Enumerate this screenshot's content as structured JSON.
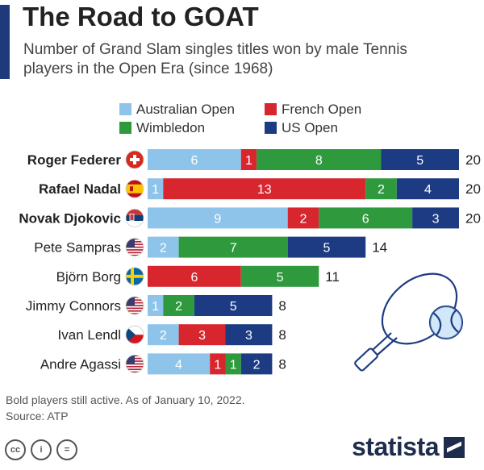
{
  "title": "The Road to GOAT",
  "subtitle": "Number of Grand Slam singles titles won by male Tennis players in the Open Era (since 1968)",
  "footnote_line1": "Bold players still active. As of January 10, 2022.",
  "footnote_line2": "Source: ATP",
  "brand": "statista",
  "colors": {
    "australian_open": "#8fc4ea",
    "french_open": "#d8262f",
    "wimbledon": "#2e9a3d",
    "us_open": "#1d3b82",
    "accent": "#1f3a7a"
  },
  "chart_data": {
    "type": "bar",
    "orientation": "horizontal",
    "stacked": true,
    "legend_position": "top",
    "grid": false,
    "categories": [
      "Roger Federer",
      "Rafael Nadal",
      "Novak Djokovic",
      "Pete Sampras",
      "Björn Borg",
      "Jimmy Connors",
      "Ivan Lendl",
      "Andre Agassi"
    ],
    "bold": [
      true,
      true,
      true,
      false,
      false,
      false,
      false,
      false
    ],
    "flags": [
      "switzerland-flag-icon",
      "spain-flag-icon",
      "serbia-flag-icon",
      "usa-flag-icon",
      "sweden-flag-icon",
      "usa-flag-icon",
      "czech-flag-icon",
      "usa-flag-icon"
    ],
    "series": [
      {
        "name": "Australian Open",
        "color": "#8fc4ea",
        "values": [
          6,
          1,
          9,
          2,
          0,
          1,
          2,
          4
        ]
      },
      {
        "name": "French Open",
        "color": "#d8262f",
        "values": [
          1,
          13,
          2,
          0,
          6,
          0,
          3,
          1
        ]
      },
      {
        "name": "Wimbledon",
        "color": "#2e9a3d",
        "values": [
          8,
          2,
          6,
          7,
          5,
          2,
          0,
          1
        ]
      },
      {
        "name": "US Open",
        "color": "#1d3b82",
        "values": [
          5,
          4,
          3,
          5,
          0,
          5,
          3,
          2
        ]
      }
    ],
    "totals": [
      20,
      20,
      20,
      14,
      11,
      8,
      8,
      8
    ],
    "xlim": [
      0,
      20
    ]
  }
}
